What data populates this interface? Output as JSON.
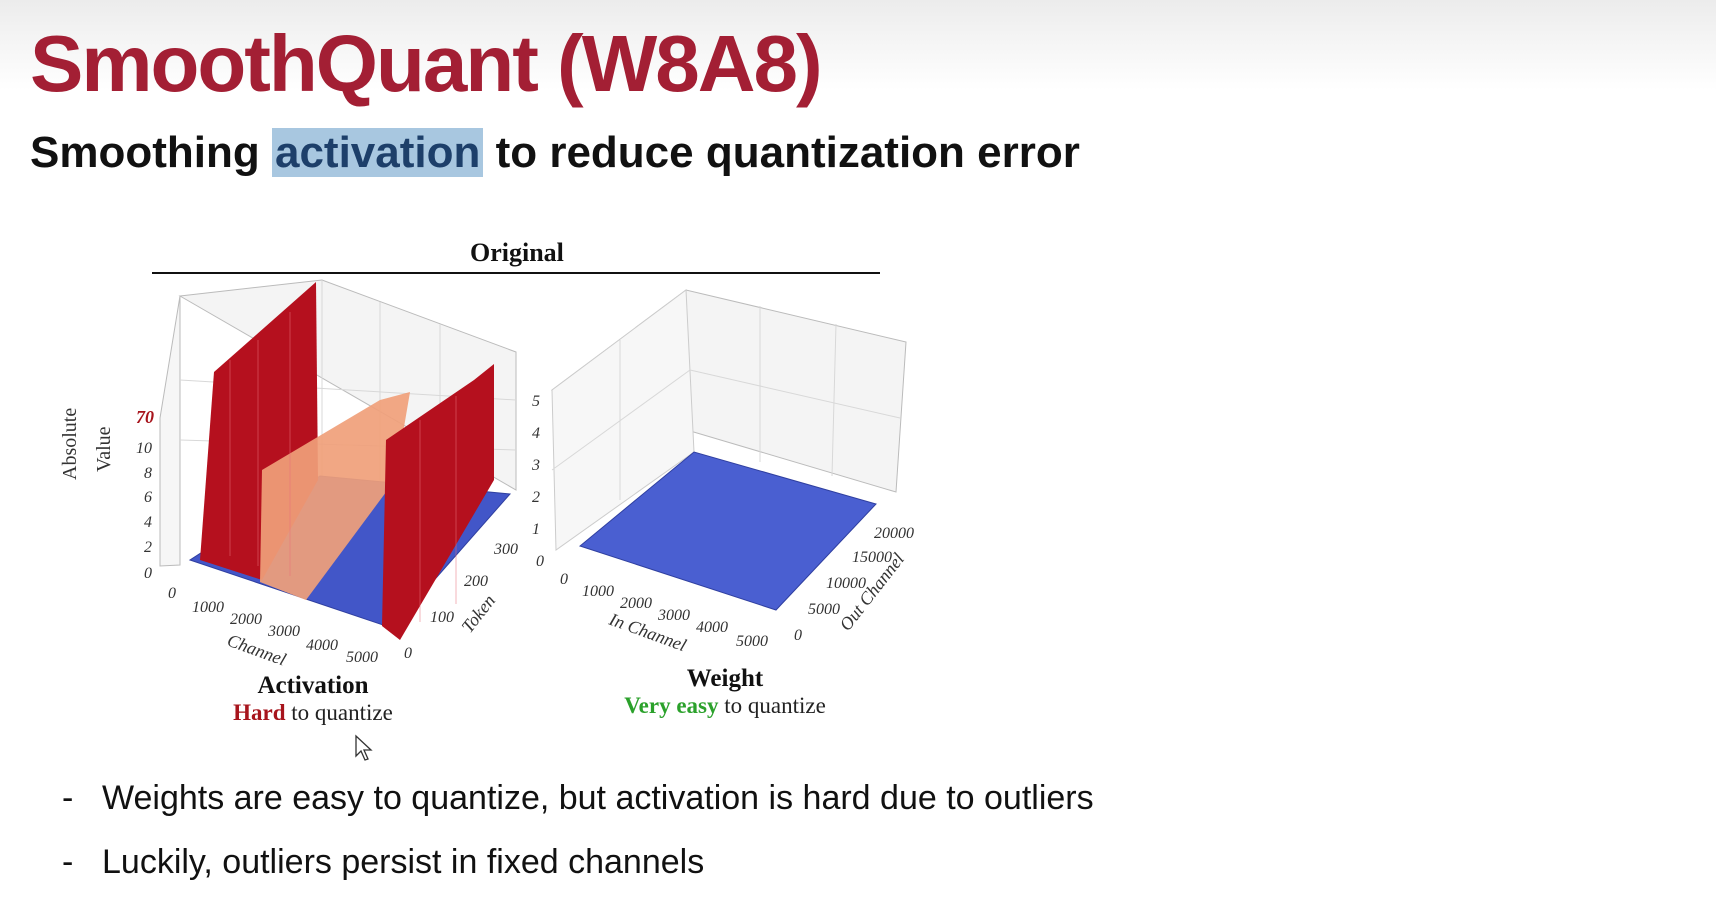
{
  "slide": {
    "title": "SmoothQuant (W8A8)",
    "subtitle_before": "Smoothing ",
    "subtitle_highlight": "activation",
    "subtitle_after": " to reduce quantization error"
  },
  "figure": {
    "title": "Original",
    "activation": {
      "name": "Activation",
      "difficulty_word": "Hard",
      "rest": " to quantize",
      "z_axis_title_line1": "Absolute",
      "z_axis_title_line2": "Value",
      "z_ticks": [
        "0",
        "2",
        "4",
        "6",
        "8",
        "10",
        "70"
      ],
      "x_ticks": [
        "0",
        "1000",
        "2000",
        "3000",
        "4000",
        "5000"
      ],
      "x_label": "Channel",
      "y_ticks": [
        "0",
        "100",
        "200",
        "300"
      ],
      "y_label": "Token"
    },
    "weight": {
      "name": "Weight",
      "difficulty_word": "Very easy",
      "rest": " to quantize",
      "z_ticks": [
        "0",
        "1",
        "2",
        "3",
        "4",
        "5"
      ],
      "x_ticks": [
        "0",
        "1000",
        "2000",
        "3000",
        "4000",
        "5000"
      ],
      "x_label": "In Channel",
      "y_ticks": [
        "0",
        "5000",
        "10000",
        "15000",
        "20000"
      ],
      "y_label": "Out Channel"
    },
    "colors": {
      "outlier_red": "#b5101e",
      "medium_orange": "#f0a07a",
      "low_blue": "#4a5fd1"
    }
  },
  "bullets": [
    "Weights are easy to quantize, but activation is hard due to outliers",
    "Luckily, outliers persist in fixed channels"
  ]
}
